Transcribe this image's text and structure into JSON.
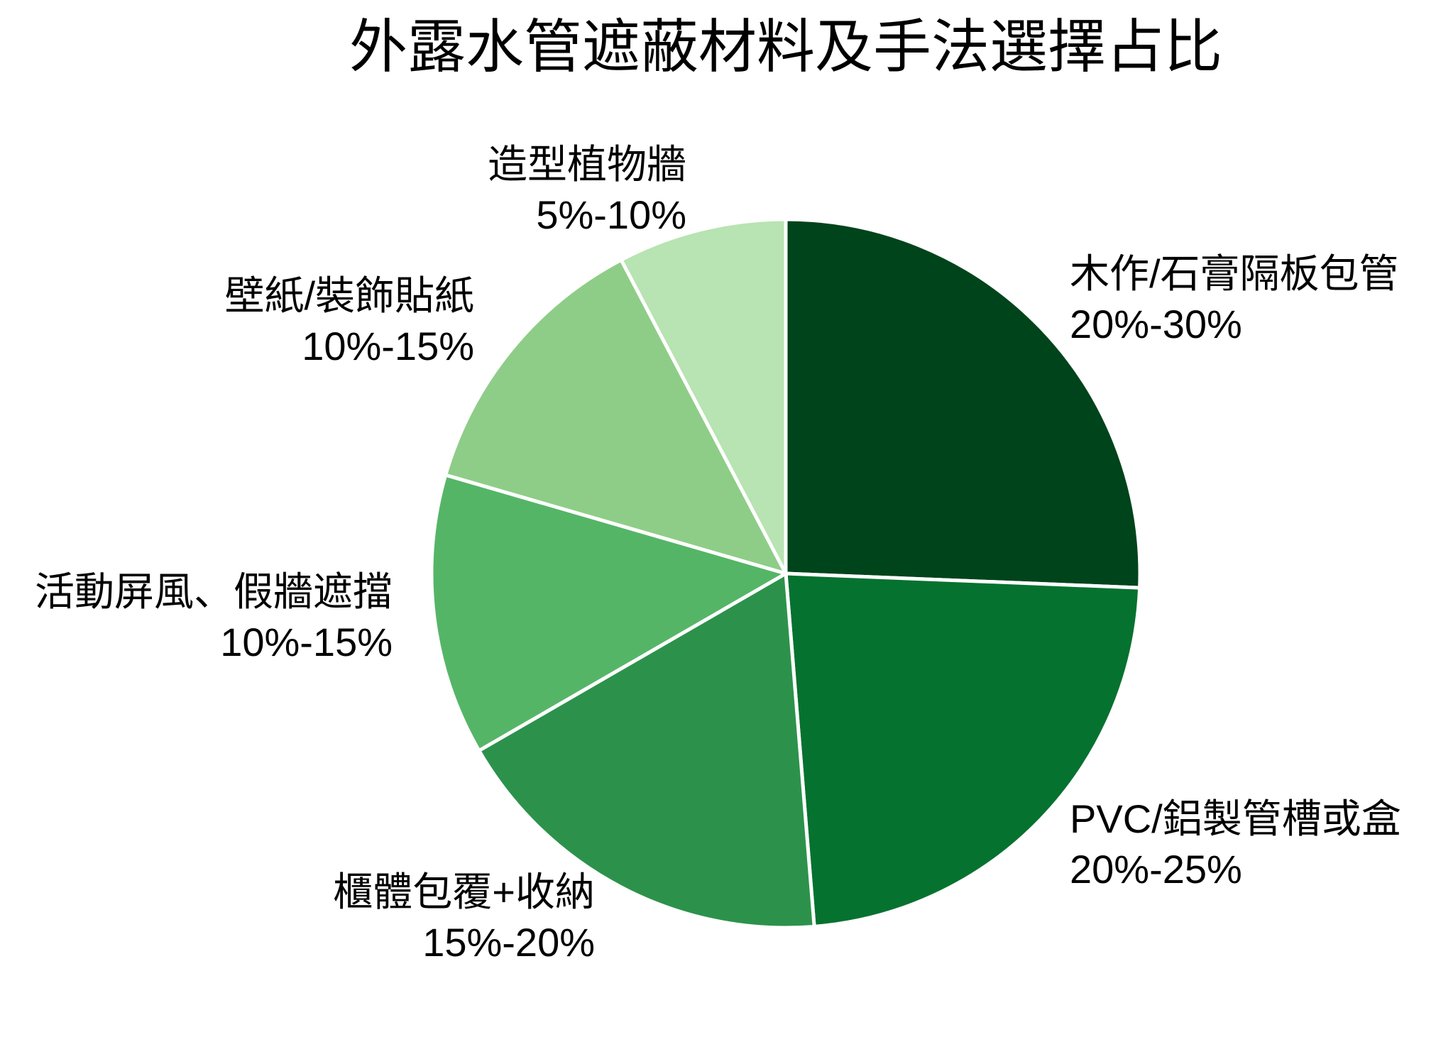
{
  "title": "外露水管遮蔽材料及手法選擇占比",
  "slices": [
    {
      "label": "木作/石膏隔板包管",
      "range": "20%-30%",
      "value": 25,
      "color": "#00441b"
    },
    {
      "label": "PVC/鋁製管槽或盒",
      "range": "20%-25%",
      "value": 22.5,
      "color": "#06722f"
    },
    {
      "label": "櫃體包覆+收納",
      "range": "15%-20%",
      "value": 17.5,
      "color": "#2c924b"
    },
    {
      "label": "活動屏風、假牆遮擋",
      "range": "10%-15%",
      "value": 12.5,
      "color": "#55b567"
    },
    {
      "label": "壁紙/裝飾貼紙",
      "range": "10%-15%",
      "value": 12.5,
      "color": "#8ecd87"
    },
    {
      "label": "造型植物牆",
      "range": "5%-10%",
      "value": 7.5,
      "color": "#b8e3b2"
    }
  ],
  "chart_data": {
    "type": "pie",
    "title": "外露水管遮蔽材料及手法選擇占比",
    "categories": [
      "木作/石膏隔板包管",
      "PVC/鋁製管槽或盒",
      "櫃體包覆+收納",
      "活動屏風、假牆遮擋",
      "壁紙/裝飾貼紙",
      "造型植物牆"
    ],
    "range_labels": [
      "20%-30%",
      "20%-25%",
      "15%-20%",
      "10%-15%",
      "10%-15%",
      "5%-10%"
    ],
    "values": [
      25,
      22.5,
      17.5,
      12.5,
      12.5,
      7.5
    ],
    "share_of_pie_percent": [
      25.64,
      23.08,
      17.95,
      12.82,
      12.82,
      7.69
    ],
    "colors": [
      "#00441b",
      "#06722f",
      "#2c924b",
      "#55b567",
      "#8ecd87",
      "#b8e3b2"
    ],
    "start_angle_deg": 90,
    "direction": "clockwise",
    "legend": false,
    "edge_color": "#ffffff",
    "xlabel": "",
    "ylabel": ""
  }
}
